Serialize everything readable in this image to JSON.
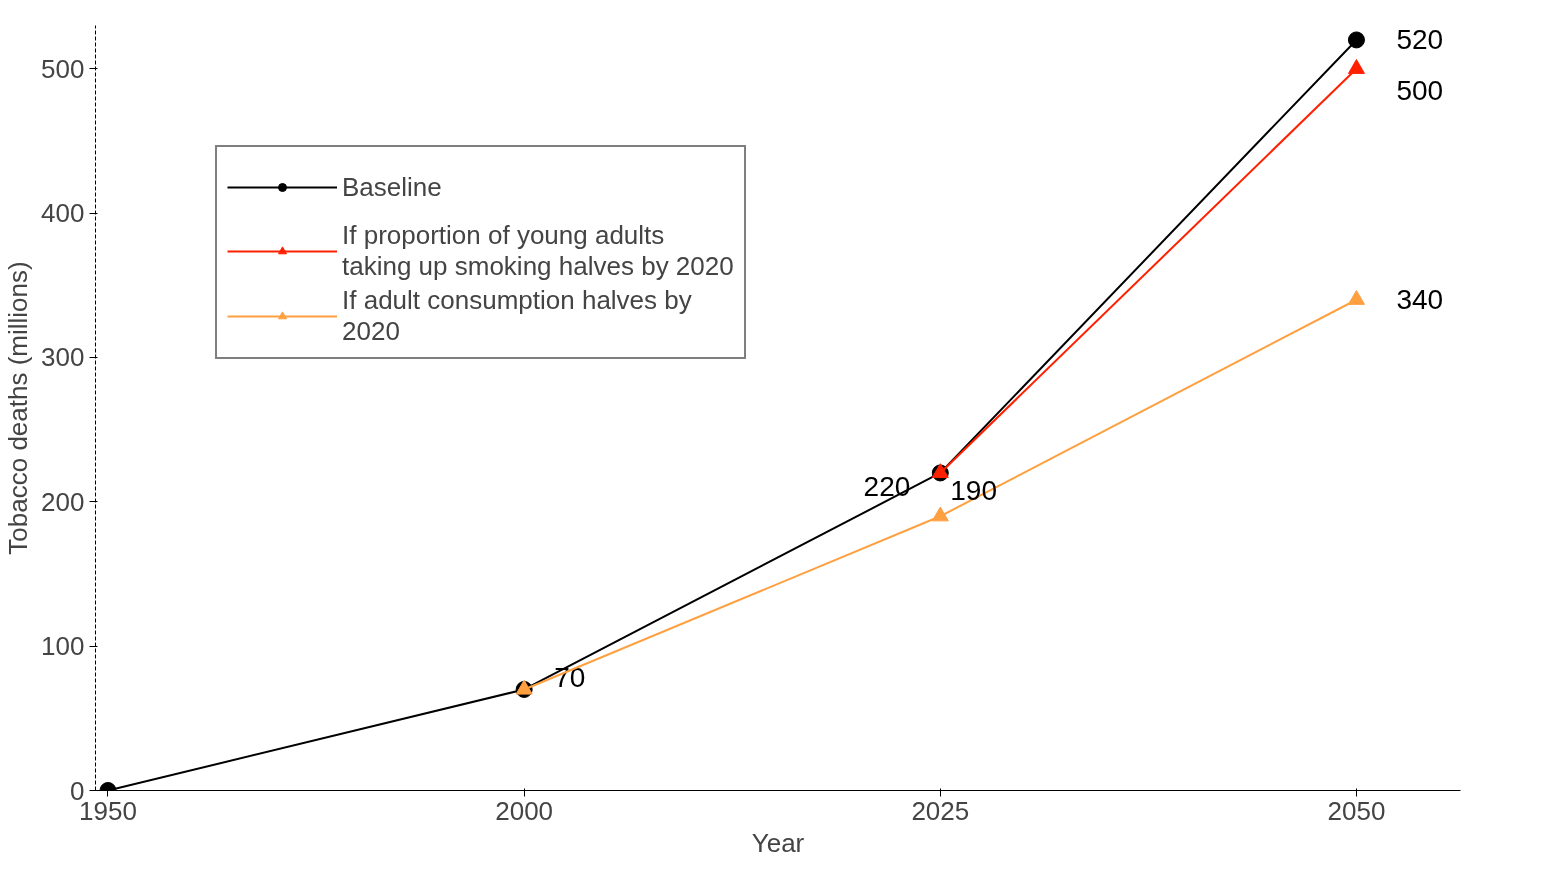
{
  "chart_data": {
    "type": "line",
    "xlabel": "Year",
    "ylabel": "Tobacco deaths (millions)",
    "categories": [
      "1950",
      "2000",
      "2025",
      "2050"
    ],
    "ylim": [
      0,
      530
    ],
    "yticks": [
      0,
      100,
      200,
      300,
      400,
      500
    ],
    "grid": false,
    "legend": "top left",
    "series": [
      {
        "name": "Baseline",
        "color": "#000000",
        "marker": "circle",
        "values": [
          0,
          70,
          220,
          520
        ],
        "value_labels": [
          null,
          "70",
          "220",
          "520"
        ]
      },
      {
        "name": "If proportion of young adults taking up smoking halves by 2020",
        "color": "#ff2000",
        "marker": "triangle",
        "values": [
          null,
          null,
          220,
          500
        ],
        "value_labels": [
          null,
          null,
          null,
          "500"
        ]
      },
      {
        "name": "If adult consumption halves by 2020",
        "color": "#ffa040",
        "marker": "triangle",
        "values": [
          null,
          70,
          190,
          340
        ],
        "value_labels": [
          null,
          null,
          "190",
          "340"
        ]
      }
    ]
  }
}
